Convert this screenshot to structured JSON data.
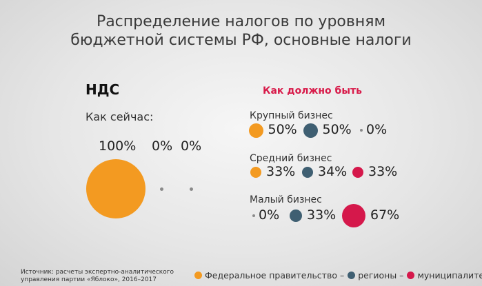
{
  "title_lines": [
    "Распределение налогов по уровням",
    "бюджетной системы РФ, основные налоги"
  ],
  "colors": {
    "federal": "#f39a21",
    "regions": "#3f5f72",
    "municipal": "#d5184b"
  },
  "chart_data": {
    "type": "bubble",
    "tax": "НДС",
    "current": {
      "label": "Как сейчас:",
      "values": [
        {
          "level": "federal",
          "label": "100%",
          "value": 100
        },
        {
          "level": "regions",
          "label": "0%",
          "value": 0
        },
        {
          "level": "municipal",
          "label": "0%",
          "value": 0
        }
      ]
    },
    "proposed": {
      "label": "Как должно быть",
      "segments": [
        {
          "name": "Крупный бизнес",
          "values": [
            {
              "level": "federal",
              "label": "50%",
              "value": 50
            },
            {
              "level": "regions",
              "label": "50%",
              "value": 50
            },
            {
              "level": "municipal",
              "label": "0%",
              "value": 0
            }
          ]
        },
        {
          "name": "Средний бизнес",
          "values": [
            {
              "level": "federal",
              "label": "33%",
              "value": 33
            },
            {
              "level": "regions",
              "label": "34%",
              "value": 34
            },
            {
              "level": "municipal",
              "label": "33%",
              "value": 33
            }
          ]
        },
        {
          "name": "Малый бизнес",
          "values": [
            {
              "level": "federal",
              "label": "0%",
              "value": 0
            },
            {
              "level": "regions",
              "label": "33%",
              "value": 33
            },
            {
              "level": "municipal",
              "label": "67%",
              "value": 67
            }
          ]
        }
      ]
    },
    "legend": [
      {
        "level": "federal",
        "label": "Федеральное правительство –"
      },
      {
        "level": "regions",
        "label": "регионы –"
      },
      {
        "level": "municipal",
        "label": "муниципалитеты"
      }
    ]
  },
  "source": "Источник: расчеты экспертно-аналитического управления партии «Яблоко», 2016–2017"
}
